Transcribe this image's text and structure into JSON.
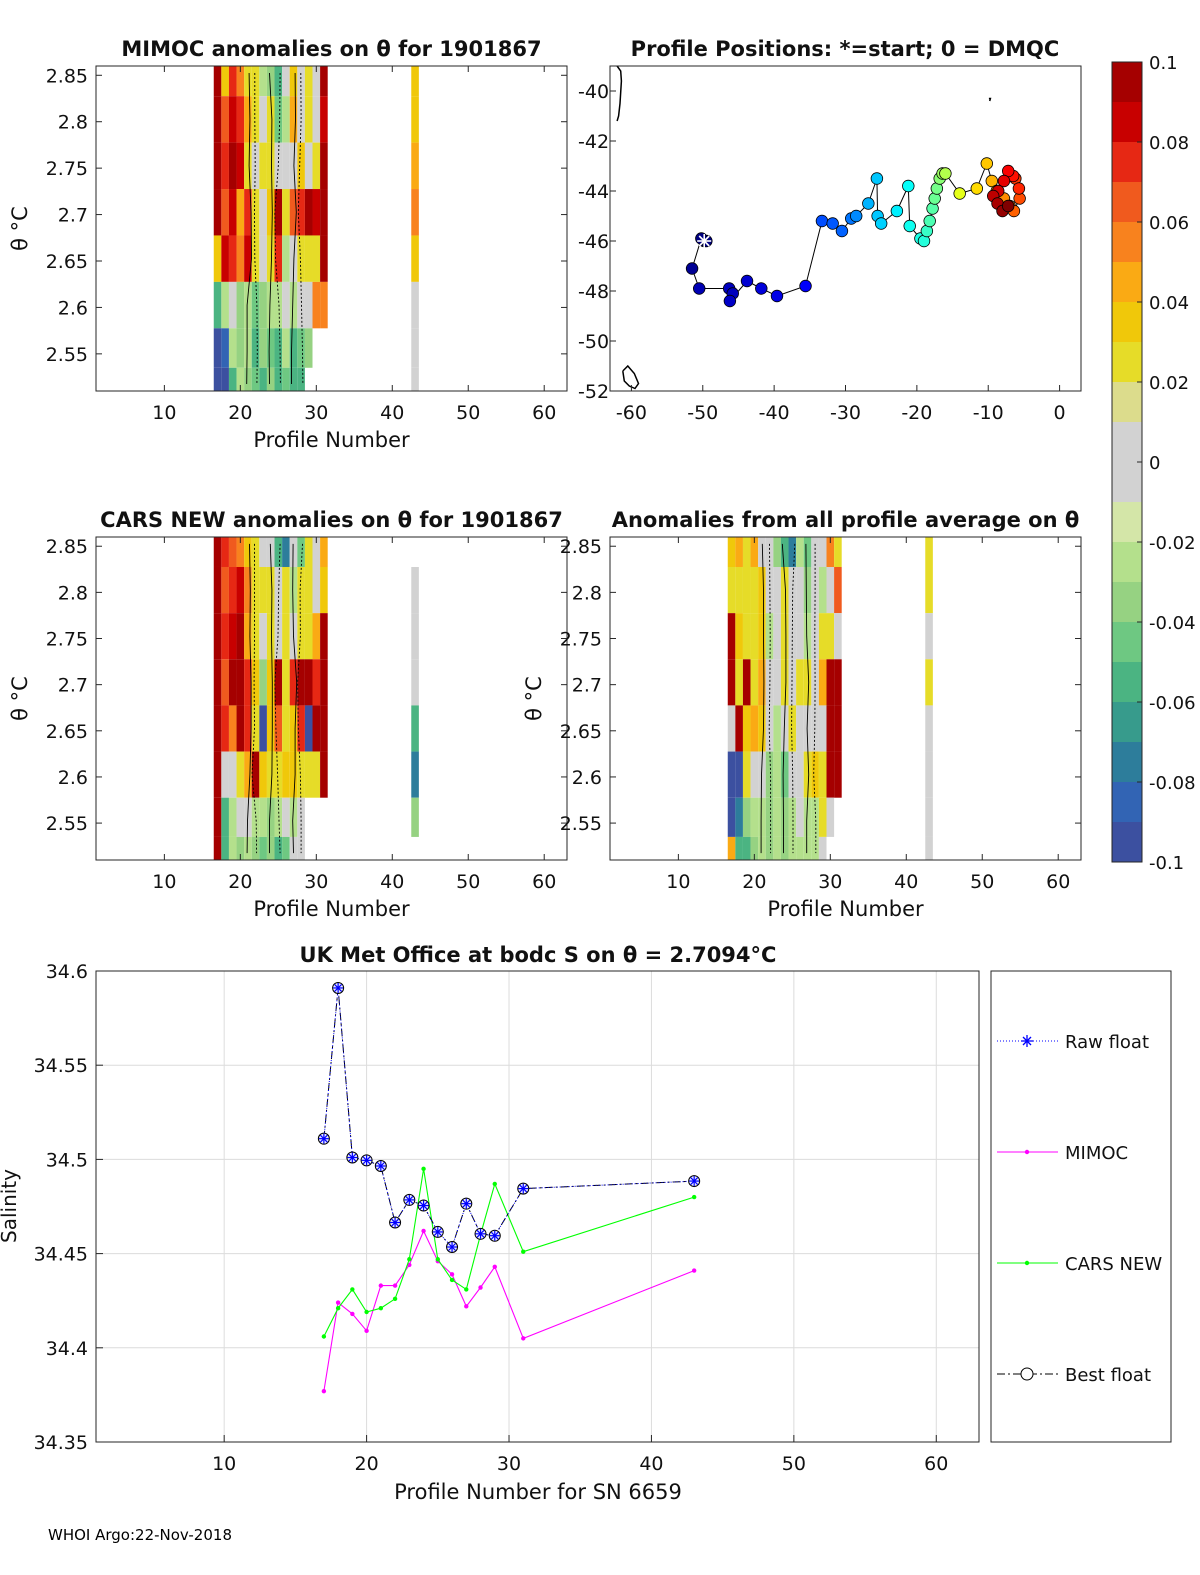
{
  "footer": "WHOI Argo:22-Nov-2018",
  "colors": {
    "raw_float": "#0000ff",
    "mimoc": "#ff00ff",
    "cars_new": "#00ff00",
    "best_float": "#000000",
    "contour": "#000000",
    "empty": "#ffffff"
  },
  "chart_data": [
    {
      "id": "mimoc_panel",
      "type": "heatmap",
      "title": "MIMOC anomalies on θ  for 1901867",
      "xlabel": "Profile Number",
      "ylabel": "θ °C",
      "xlim": [
        1,
        63
      ],
      "ylim": [
        2.51,
        2.86
      ],
      "xticks": [
        10,
        20,
        30,
        40,
        50,
        60
      ],
      "yticks": [
        2.55,
        2.6,
        2.65,
        2.7,
        2.75,
        2.8,
        2.85
      ],
      "ytick_labels": [
        "2.55",
        "2.6",
        "2.65",
        "2.7",
        "2.75",
        "2.8",
        "2.85"
      ],
      "xtick_labels": [
        "10",
        "20",
        "30",
        "40",
        "50",
        "60"
      ],
      "columns": [
        17,
        18,
        19,
        20,
        21,
        22,
        23,
        24,
        25,
        26,
        27,
        28,
        29,
        30,
        31,
        43
      ],
      "row_levels": [
        2.8525,
        2.8025,
        2.7525,
        2.7025,
        2.6525,
        2.6025,
        2.5525,
        2.5175
      ],
      "anomalies": [
        [
          0.1,
          0.04,
          0.08,
          0.06,
          0.03,
          0.02,
          -0.02,
          -0.03,
          -0.05,
          -0.01,
          0.04,
          0.01,
          0.02,
          0.0,
          0.1,
          0.04
        ],
        [
          0.1,
          0.07,
          0.09,
          0.08,
          0.05,
          0.02,
          -0.01,
          0.03,
          -0.04,
          -0.02,
          0.05,
          0.0,
          0.03,
          0.01,
          0.09,
          0.04
        ],
        [
          0.1,
          0.08,
          0.1,
          0.09,
          0.03,
          0.01,
          0.03,
          0.02,
          0.0,
          0.0,
          0.01,
          0.04,
          0.0,
          0.02,
          0.1,
          0.05
        ],
        [
          0.1,
          0.07,
          0.09,
          0.05,
          0.08,
          0.03,
          0.0,
          0.04,
          0.1,
          0.02,
          0.07,
          0.08,
          0.1,
          0.09,
          0.1,
          0.06
        ],
        [
          0.04,
          0.09,
          0.08,
          0.06,
          0.09,
          0.02,
          -0.01,
          0.02,
          0.08,
          -0.02,
          0.01,
          0.02,
          0.03,
          0.03,
          0.1,
          0.04
        ],
        [
          -0.05,
          -0.02,
          -0.01,
          -0.03,
          -0.02,
          -0.04,
          -0.03,
          -0.02,
          -0.02,
          -0.01,
          -0.02,
          -0.01,
          -0.01,
          0.06,
          0.06,
          0.0
        ],
        [
          -0.09,
          -0.08,
          -0.02,
          -0.03,
          -0.02,
          -0.05,
          -0.03,
          -0.04,
          -0.05,
          -0.02,
          -0.05,
          -0.04,
          -0.03,
          null,
          null,
          0.0
        ],
        [
          -0.1,
          -0.09,
          -0.06,
          -0.02,
          -0.03,
          -0.04,
          -0.05,
          -0.03,
          -0.06,
          -0.04,
          -0.05,
          -0.05,
          null,
          null,
          null,
          0.0
        ]
      ]
    },
    {
      "id": "positions_panel",
      "type": "scatter",
      "title": "Profile Positions: *=start; 0 = DMQC",
      "xlim": [
        -63,
        3
      ],
      "ylim": [
        -52,
        -39
      ],
      "xticks": [
        -60,
        -50,
        -40,
        -30,
        -20,
        -10,
        0
      ],
      "xtick_labels": [
        "-60",
        "-50",
        "-40",
        "-30",
        "-20",
        "-10",
        "0"
      ],
      "yticks": [
        -52,
        -50,
        -48,
        -46,
        -44,
        -42,
        -40
      ],
      "ytick_labels": [
        "-52",
        "-50",
        "-48",
        "-46",
        "-44",
        "-42",
        "-40"
      ],
      "start": [
        -49.8,
        -46.0
      ],
      "lon": [
        -49.8,
        -49.5,
        -50.2,
        -51.5,
        -50.5,
        -46.3,
        -45.8,
        -46.2,
        -43.8,
        -41.8,
        -39.6,
        -35.6,
        -33.3,
        -31.8,
        -30.5,
        -29.2,
        -28.5,
        -26.8,
        -25.6,
        -25.5,
        -25.0,
        -22.8,
        -21.2,
        -21.0,
        -19.5,
        -19.0,
        -18.6,
        -18.2,
        -17.8,
        -17.5,
        -17.2,
        -16.8,
        -16.4,
        -16.0,
        -14.0,
        -11.6,
        -10.2,
        -9.5,
        -8.8,
        -7.8,
        -7.0,
        -6.4,
        -5.6,
        -6.2,
        -5.7,
        -6.5,
        -7.2,
        -7.8,
        -8.6,
        -9.3,
        -8.7,
        -8.0,
        -7.2
      ],
      "lat": [
        -46.0,
        -46.0,
        -45.9,
        -47.1,
        -47.9,
        -47.9,
        -48.1,
        -48.4,
        -47.6,
        -47.9,
        -48.2,
        -47.8,
        -45.2,
        -45.3,
        -45.6,
        -45.1,
        -45.0,
        -44.5,
        -43.5,
        -45.0,
        -45.3,
        -44.8,
        -43.8,
        -45.4,
        -45.9,
        -46.0,
        -45.6,
        -45.2,
        -44.7,
        -44.3,
        -43.9,
        -43.5,
        -43.3,
        -43.3,
        -44.1,
        -43.9,
        -42.9,
        -43.6,
        -44.0,
        -44.3,
        -44.6,
        -44.8,
        -44.3,
        -43.5,
        -43.9,
        -43.4,
        -43.2,
        -43.6,
        -44.0,
        -44.2,
        -44.5,
        -44.8,
        -44.6
      ],
      "value": [
        0,
        0,
        0,
        0.02,
        0.05,
        0.06,
        0.06,
        0.07,
        0.08,
        0.09,
        0.1,
        0.12,
        0.2,
        0.21,
        0.22,
        0.24,
        0.26,
        0.3,
        0.32,
        0.32,
        0.33,
        0.36,
        0.38,
        0.39,
        0.4,
        0.41,
        0.43,
        0.45,
        0.46,
        0.48,
        0.49,
        0.51,
        0.53,
        0.55,
        0.6,
        0.66,
        0.68,
        0.7,
        0.72,
        0.74,
        0.76,
        0.78,
        0.8,
        0.82,
        0.84,
        0.86,
        0.88,
        0.9,
        0.92,
        0.94,
        0.96,
        0.98,
        1.0
      ],
      "coast": [
        {
          "lon": [
            -62.0,
            -61.5,
            -61.4,
            -61.6,
            -61.8,
            -62.0
          ],
          "lat": [
            -39.0,
            -39.2,
            -39.6,
            -40.5,
            -41.0,
            -41.2
          ]
        },
        {
          "lon": [
            -61.2,
            -60.5,
            -59.6,
            -59.0,
            -59.5,
            -60.3,
            -61.0,
            -61.2
          ],
          "lat": [
            -51.2,
            -51.0,
            -51.3,
            -51.7,
            -51.9,
            -51.8,
            -51.6,
            -51.2
          ]
        },
        {
          "lon": [
            -9.9,
            -9.7,
            -9.8
          ],
          "lat": [
            -40.3,
            -40.3,
            -40.4
          ]
        }
      ]
    },
    {
      "id": "cars_panel",
      "type": "heatmap",
      "title": "CARS NEW anomalies on θ for 1901867",
      "xlabel": "Profile Number",
      "ylabel": "θ °C",
      "xlim": [
        1,
        63
      ],
      "ylim": [
        2.51,
        2.86
      ],
      "xticks": [
        10,
        20,
        30,
        40,
        50,
        60
      ],
      "yticks": [
        2.55,
        2.6,
        2.65,
        2.7,
        2.75,
        2.8,
        2.85
      ],
      "ytick_labels": [
        "2.55",
        "2.6",
        "2.65",
        "2.7",
        "2.75",
        "2.8",
        "2.85"
      ],
      "xtick_labels": [
        "10",
        "20",
        "30",
        "40",
        "50",
        "60"
      ],
      "columns": [
        17,
        18,
        19,
        20,
        21,
        22,
        23,
        24,
        25,
        26,
        27,
        28,
        29,
        30,
        31,
        43
      ],
      "row_levels": [
        2.8525,
        2.8025,
        2.7525,
        2.7025,
        2.6525,
        2.6025,
        2.5525,
        2.5175
      ],
      "anomalies": [
        [
          0.1,
          0.08,
          0.07,
          0.06,
          0.04,
          0.03,
          0.0,
          -0.01,
          -0.05,
          -0.07,
          -0.01,
          -0.04,
          0.02,
          0.0,
          0.05,
          null
        ],
        [
          0.1,
          0.07,
          0.08,
          0.09,
          0.06,
          0.03,
          0.02,
          0.03,
          -0.01,
          0.02,
          -0.02,
          0.03,
          0.02,
          -0.01,
          0.04,
          -0.01
        ],
        [
          0.1,
          0.08,
          0.09,
          0.1,
          0.05,
          0.03,
          0.0,
          0.02,
          0.01,
          0.02,
          0.0,
          0.02,
          0.03,
          0.05,
          0.1,
          -0.01
        ],
        [
          0.1,
          0.07,
          0.1,
          0.1,
          0.08,
          0.04,
          -0.03,
          0.04,
          0.1,
          0.02,
          0.08,
          0.1,
          0.1,
          0.08,
          0.1,
          0.0
        ],
        [
          0.1,
          0.08,
          0.06,
          0.1,
          0.08,
          0.03,
          -0.09,
          0.04,
          0.07,
          0.02,
          0.04,
          0.08,
          -0.09,
          0.1,
          0.1,
          -0.05
        ],
        [
          0.1,
          0.0,
          0.01,
          0.03,
          0.05,
          0.1,
          0.04,
          0.03,
          0.02,
          0.04,
          0.04,
          0.02,
          0.03,
          0.02,
          0.1,
          -0.07
        ],
        [
          0.1,
          -0.05,
          -0.02,
          0.0,
          -0.01,
          -0.02,
          -0.02,
          -0.03,
          -0.02,
          0.01,
          -0.02,
          0.0,
          null,
          null,
          null,
          -0.03
        ],
        [
          0.1,
          -0.06,
          -0.02,
          -0.03,
          -0.02,
          -0.03,
          -0.04,
          -0.03,
          -0.05,
          -0.04,
          0.0,
          0.0,
          null,
          null,
          null,
          null
        ]
      ]
    },
    {
      "id": "allavg_panel",
      "type": "heatmap",
      "title": "Anomalies from all profile average on θ",
      "xlabel": "Profile Number",
      "ylabel": "θ °C",
      "xlim": [
        1,
        63
      ],
      "ylim": [
        2.51,
        2.86
      ],
      "xticks": [
        10,
        20,
        30,
        40,
        50,
        60
      ],
      "yticks": [
        2.55,
        2.6,
        2.65,
        2.7,
        2.75,
        2.8,
        2.85
      ],
      "ytick_labels": [
        "2.55",
        "2.6",
        "2.65",
        "2.7",
        "2.75",
        "2.8",
        "2.85"
      ],
      "xtick_labels": [
        "10",
        "20",
        "30",
        "40",
        "50",
        "60"
      ],
      "columns": [
        17,
        18,
        19,
        20,
        21,
        22,
        23,
        24,
        25,
        26,
        27,
        28,
        29,
        30,
        31,
        43
      ],
      "row_levels": [
        2.8525,
        2.8025,
        2.7525,
        2.7025,
        2.6525,
        2.6025,
        2.5525,
        2.5175
      ],
      "anomalies": [
        [
          0.04,
          0.05,
          0.03,
          0.05,
          0.01,
          0.0,
          -0.03,
          -0.06,
          -0.07,
          -0.02,
          -0.04,
          0.0,
          0.01,
          0.06,
          0.03,
          0.03
        ],
        [
          0.03,
          0.03,
          0.02,
          0.03,
          0.04,
          -0.01,
          0.0,
          0.02,
          -0.01,
          -0.01,
          -0.03,
          0.0,
          -0.02,
          -0.01,
          0.07,
          0.03
        ],
        [
          0.1,
          0.04,
          0.02,
          0.03,
          0.04,
          -0.02,
          -0.01,
          0.03,
          0.0,
          0.0,
          -0.02,
          0.01,
          0.02,
          0.02,
          0.0,
          0.01
        ],
        [
          0.1,
          0.03,
          0.1,
          0.03,
          0.05,
          -0.01,
          0.0,
          0.03,
          0.01,
          0.02,
          0.03,
          0.0,
          0.05,
          0.1,
          0.1,
          0.02
        ],
        [
          -0.01,
          0.1,
          0.04,
          0.05,
          0.04,
          0.01,
          -0.02,
          -0.01,
          0.02,
          0.0,
          -0.01,
          0.01,
          0.0,
          0.1,
          0.1,
          0.0
        ],
        [
          -0.09,
          -0.09,
          0.02,
          0.0,
          -0.01,
          -0.03,
          -0.02,
          -0.04,
          -0.01,
          -0.01,
          0.03,
          0.04,
          0.03,
          0.1,
          0.1,
          -0.01
        ],
        [
          -0.09,
          -0.07,
          -0.03,
          -0.02,
          -0.02,
          -0.03,
          -0.02,
          -0.03,
          -0.02,
          -0.01,
          -0.02,
          -0.02,
          0.03,
          -0.01,
          null,
          0.0
        ],
        [
          0.05,
          -0.05,
          -0.05,
          -0.03,
          -0.02,
          -0.03,
          -0.02,
          -0.03,
          -0.02,
          -0.02,
          -0.02,
          -0.02,
          -0.01,
          null,
          null,
          0.0
        ]
      ]
    },
    {
      "id": "colorbar",
      "type": "heatmap",
      "vmin": -0.1,
      "vmax": 0.1,
      "ticks": [
        0.1,
        0.08,
        0.06,
        0.04,
        0.02,
        0,
        -0.02,
        -0.04,
        -0.06,
        -0.08,
        -0.1
      ],
      "tick_labels": [
        "0.1",
        "0.08",
        "0.06",
        "0.04",
        "0.02",
        "0",
        "-0.02",
        "-0.04",
        "-0.06",
        "-0.08",
        "-0.1"
      ],
      "bands": [
        "#a50000",
        "#c80000",
        "#e62814",
        "#f05a1e",
        "#f8821e",
        "#faaa14",
        "#f0c80a",
        "#e6dc28",
        "#dcdc8c",
        "#d2d2d2",
        "#d2d2d2",
        "#d4e6a8",
        "#b4e08c",
        "#96d282",
        "#6ec882",
        "#4bb482",
        "#379b8c",
        "#2d7d9b",
        "#3264b4",
        "#3c50a0"
      ]
    },
    {
      "id": "salinity_panel",
      "type": "line",
      "title": "UK Met Office at bodc S on θ = 2.7094°C",
      "xlabel": "Profile Number for SN 6659",
      "ylabel": "Salinity",
      "xlim": [
        1,
        63
      ],
      "ylim": [
        34.35,
        34.6
      ],
      "xticks": [
        10,
        20,
        30,
        40,
        50,
        60
      ],
      "xtick_labels": [
        "10",
        "20",
        "30",
        "40",
        "50",
        "60"
      ],
      "yticks": [
        34.35,
        34.4,
        34.45,
        34.5,
        34.55,
        34.6
      ],
      "ytick_labels": [
        "34.35",
        "34.4",
        "34.45",
        "34.5",
        "34.55",
        "34.6"
      ],
      "x": [
        17,
        18,
        19,
        20,
        21,
        22,
        23,
        24,
        25,
        26,
        27,
        28,
        29,
        31,
        43
      ],
      "series": [
        {
          "name": "Raw float",
          "values": [
            34.511,
            34.591,
            34.501,
            34.4995,
            34.4965,
            34.4665,
            34.4785,
            34.4755,
            34.4615,
            34.4535,
            34.4765,
            34.4605,
            34.4595,
            34.4845,
            34.4885
          ]
        },
        {
          "name": "MIMOC",
          "values": [
            34.377,
            34.424,
            34.418,
            34.409,
            34.433,
            34.433,
            34.444,
            34.462,
            34.446,
            34.439,
            34.422,
            34.432,
            34.443,
            34.405,
            34.441
          ]
        },
        {
          "name": "CARS NEW",
          "values": [
            34.406,
            34.421,
            34.431,
            34.419,
            34.421,
            34.426,
            34.447,
            34.495,
            34.447,
            34.436,
            34.431,
            34.46,
            34.487,
            34.451,
            34.48
          ]
        },
        {
          "name": "Best float",
          "values": [
            34.511,
            34.591,
            34.501,
            34.4995,
            34.4965,
            34.4665,
            34.4785,
            34.4755,
            34.4615,
            34.4535,
            34.4765,
            34.4605,
            34.4595,
            34.4845,
            34.4885
          ]
        }
      ],
      "legend": [
        "Raw float",
        "MIMOC",
        "CARS NEW",
        "Best float"
      ]
    }
  ]
}
